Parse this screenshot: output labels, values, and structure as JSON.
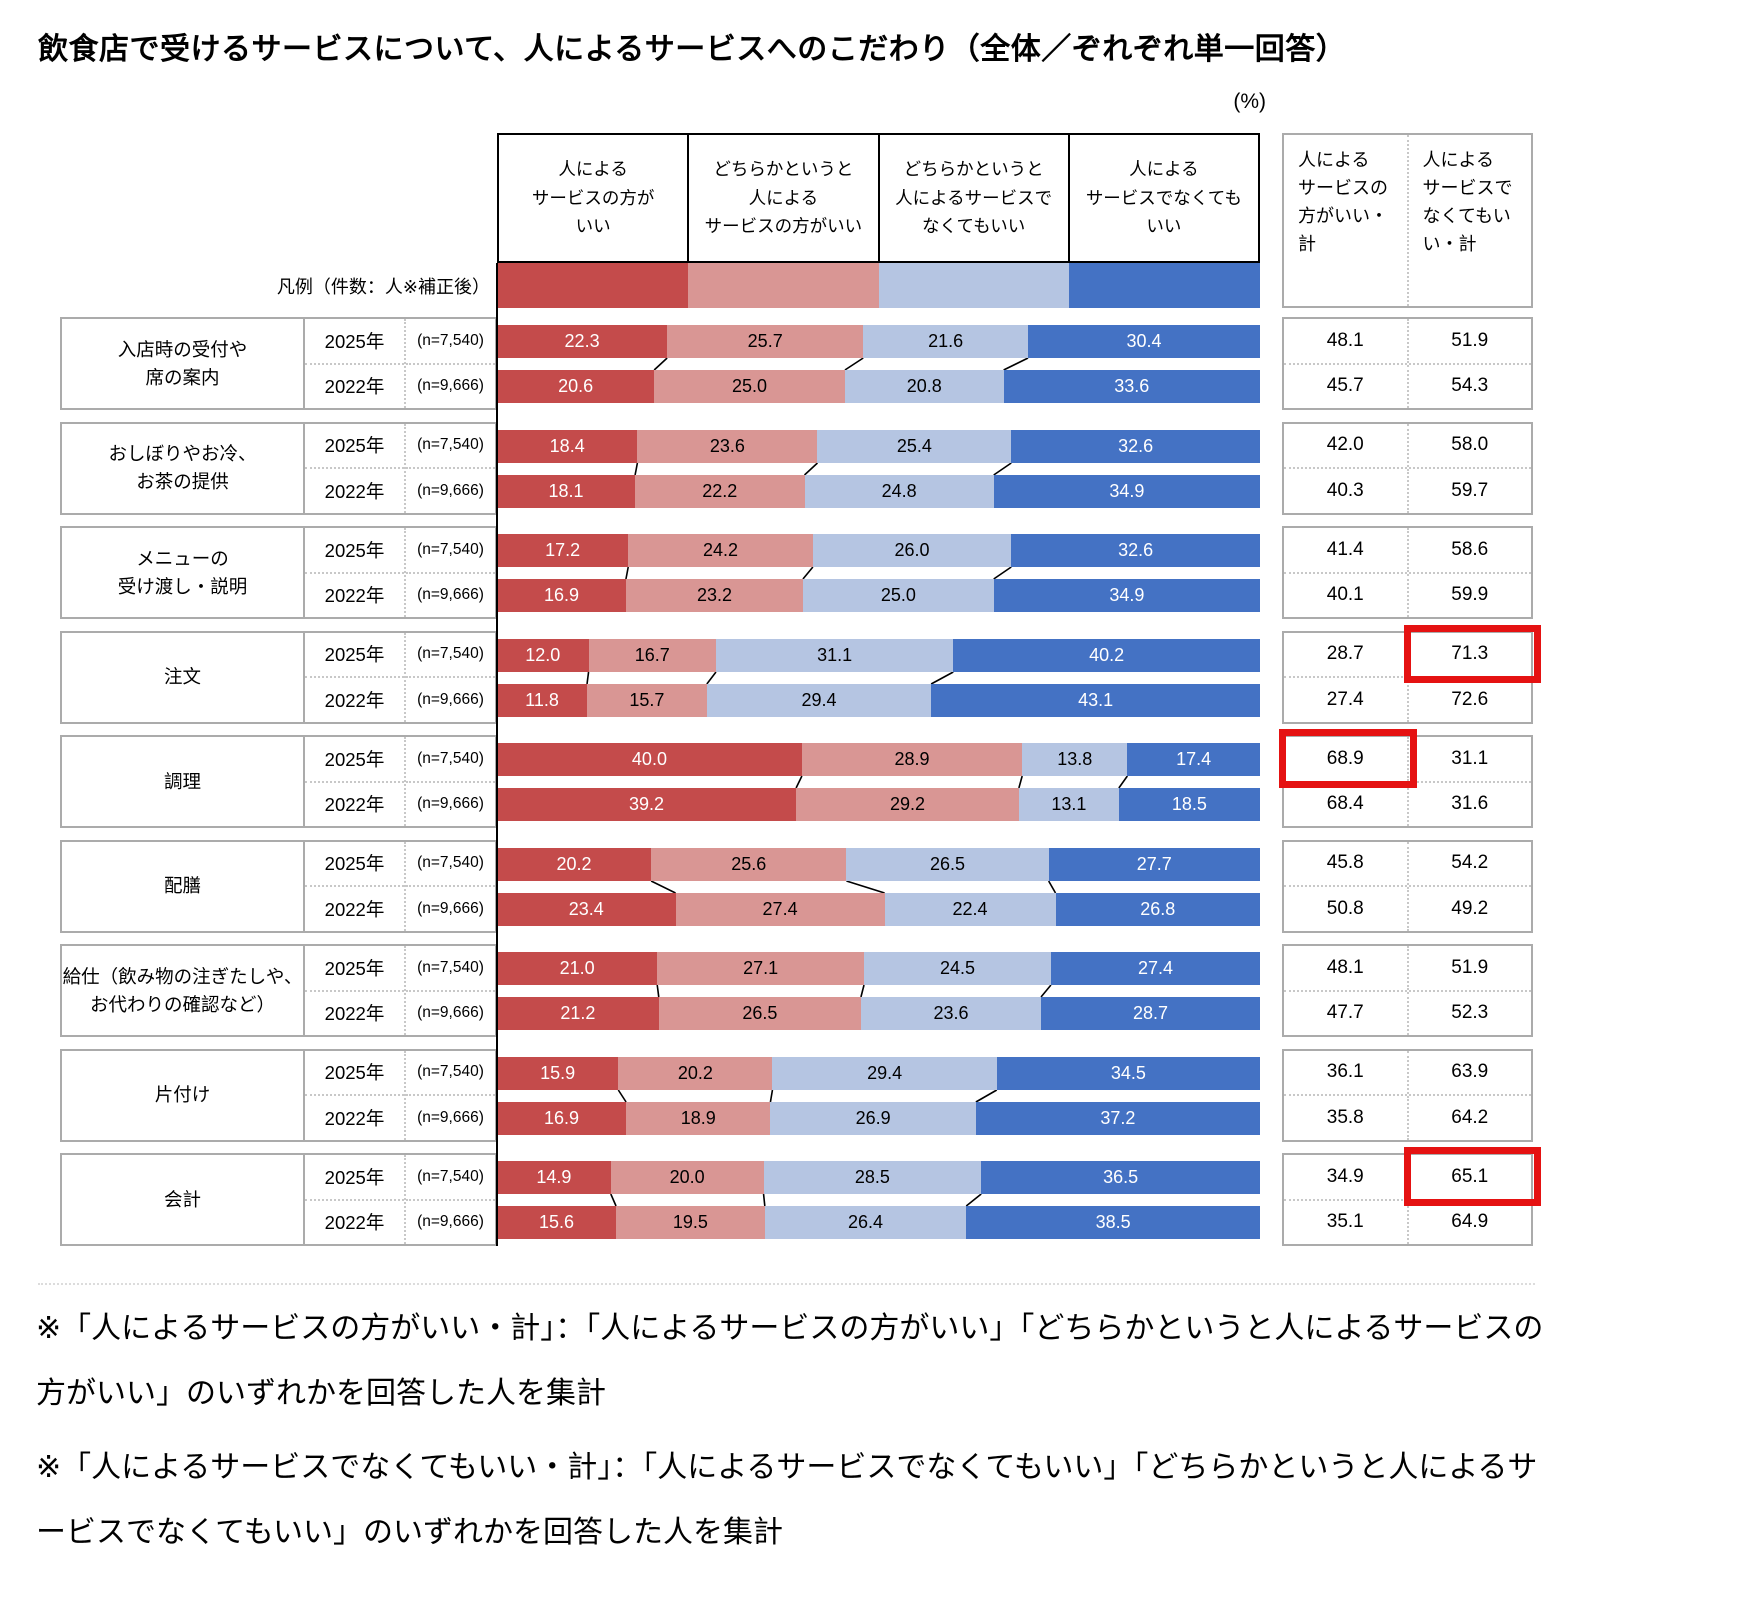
{
  "title": "飲食店で受けるサービスについて、人によるサービスへのこだわり（全体／ぞれぞれ単一回答）",
  "percent_label": "(%)",
  "legend_label": "凡例（件数：人※補正後）",
  "colors": {
    "segments": [
      "#C44B4B",
      "#D99694",
      "#B5C5E2",
      "#4472C4"
    ],
    "segment_text": [
      "#ffffff",
      "#000000",
      "#000000",
      "#ffffff"
    ],
    "highlight": "#E51212",
    "border_gray": "#ABABAB",
    "axis_black": "#000000"
  },
  "header": {
    "col1": "人による\nサービスの方が\nいい",
    "col2": "どちらかというと\n人による\nサービスの方がいい",
    "col3": "どちらかというと\n人によるサービスで\nなくてもいい",
    "col4": "人による\nサービスでなくても\nいい"
  },
  "summary_header": {
    "col1": "人による\nサービスの\n方がいい・\n計",
    "col2": "人による\nサービスで\nなくてもい\nい・計"
  },
  "chart_data": {
    "type": "bar",
    "stacked": true,
    "orientation": "horizontal",
    "unit": "%",
    "xlim": [
      0,
      100
    ],
    "series_labels": [
      "人によるサービスの方がいい",
      "どちらかというと人によるサービスの方がいい",
      "どちらかというと人によるサービスでなくてもいい",
      "人によるサービスでなくてもいい"
    ],
    "summary_headers": [
      "人によるサービスの方がいい・計",
      "人によるサービスでなくてもいい・計"
    ],
    "year_rows": [
      "2025年",
      "2022年"
    ],
    "sample_sizes": [
      "(n=7,540)",
      "(n=9,666)"
    ],
    "categories": [
      {
        "label": "入店時の受付や席の案内",
        "label_display": "入店時の受付や\n席の案内",
        "rows": [
          {
            "year": "2025年",
            "n": "(n=7,540)",
            "values": [
              22.3,
              25.7,
              21.6,
              30.4
            ],
            "sums": [
              48.1,
              51.9
            ],
            "hl": -1
          },
          {
            "year": "2022年",
            "n": "(n=9,666)",
            "values": [
              20.6,
              25.0,
              20.8,
              33.6
            ],
            "sums": [
              45.7,
              54.3
            ],
            "hl": -1
          }
        ]
      },
      {
        "label": "おしぼりやお冷、お茶の提供",
        "label_display": "おしぼりやお冷、\nお茶の提供",
        "rows": [
          {
            "year": "2025年",
            "n": "(n=7,540)",
            "values": [
              18.4,
              23.6,
              25.4,
              32.6
            ],
            "sums": [
              42.0,
              58.0
            ],
            "hl": -1
          },
          {
            "year": "2022年",
            "n": "(n=9,666)",
            "values": [
              18.1,
              22.2,
              24.8,
              34.9
            ],
            "sums": [
              40.3,
              59.7
            ],
            "hl": -1
          }
        ]
      },
      {
        "label": "メニューの受け渡し・説明",
        "label_display": "メニューの\n受け渡し・説明",
        "rows": [
          {
            "year": "2025年",
            "n": "(n=7,540)",
            "values": [
              17.2,
              24.2,
              26.0,
              32.6
            ],
            "sums": [
              41.4,
              58.6
            ],
            "hl": -1
          },
          {
            "year": "2022年",
            "n": "(n=9,666)",
            "values": [
              16.9,
              23.2,
              25.0,
              34.9
            ],
            "sums": [
              40.1,
              59.9
            ],
            "hl": -1
          }
        ]
      },
      {
        "label": "注文",
        "label_display": "注文",
        "rows": [
          {
            "year": "2025年",
            "n": "(n=7,540)",
            "values": [
              12.0,
              16.7,
              31.1,
              40.2
            ],
            "sums": [
              28.7,
              71.3
            ],
            "hl": 1
          },
          {
            "year": "2022年",
            "n": "(n=9,666)",
            "values": [
              11.8,
              15.7,
              29.4,
              43.1
            ],
            "sums": [
              27.4,
              72.6
            ],
            "hl": -1
          }
        ]
      },
      {
        "label": "調理",
        "label_display": "調理",
        "rows": [
          {
            "year": "2025年",
            "n": "(n=7,540)",
            "values": [
              40.0,
              28.9,
              13.8,
              17.4
            ],
            "sums": [
              68.9,
              31.1
            ],
            "hl": 0
          },
          {
            "year": "2022年",
            "n": "(n=9,666)",
            "values": [
              39.2,
              29.2,
              13.1,
              18.5
            ],
            "sums": [
              68.4,
              31.6
            ],
            "hl": -1
          }
        ]
      },
      {
        "label": "配膳",
        "label_display": "配膳",
        "rows": [
          {
            "year": "2025年",
            "n": "(n=7,540)",
            "values": [
              20.2,
              25.6,
              26.5,
              27.7
            ],
            "sums": [
              45.8,
              54.2
            ],
            "hl": -1
          },
          {
            "year": "2022年",
            "n": "(n=9,666)",
            "values": [
              23.4,
              27.4,
              22.4,
              26.8
            ],
            "sums": [
              50.8,
              49.2
            ],
            "hl": -1
          }
        ]
      },
      {
        "label": "給仕（飲み物の注ぎたしや、お代わりの確認など）",
        "label_display": "給仕（飲み物の注ぎたしや、\nお代わりの確認など）",
        "rows": [
          {
            "year": "2025年",
            "n": "(n=7,540)",
            "values": [
              21.0,
              27.1,
              24.5,
              27.4
            ],
            "sums": [
              48.1,
              51.9
            ],
            "hl": -1
          },
          {
            "year": "2022年",
            "n": "(n=9,666)",
            "values": [
              21.2,
              26.5,
              23.6,
              28.7
            ],
            "sums": [
              47.7,
              52.3
            ],
            "hl": -1
          }
        ]
      },
      {
        "label": "片付け",
        "label_display": "片付け",
        "rows": [
          {
            "year": "2025年",
            "n": "(n=7,540)",
            "values": [
              15.9,
              20.2,
              29.4,
              34.5
            ],
            "sums": [
              36.1,
              63.9
            ],
            "hl": -1
          },
          {
            "year": "2022年",
            "n": "(n=9,666)",
            "values": [
              16.9,
              18.9,
              26.9,
              37.2
            ],
            "sums": [
              35.8,
              64.2
            ],
            "hl": -1
          }
        ]
      },
      {
        "label": "会計",
        "label_display": "会計",
        "rows": [
          {
            "year": "2025年",
            "n": "(n=7,540)",
            "values": [
              14.9,
              20.0,
              28.5,
              36.5
            ],
            "sums": [
              34.9,
              65.1
            ],
            "hl": 1
          },
          {
            "year": "2022年",
            "n": "(n=9,666)",
            "values": [
              15.6,
              19.5,
              26.4,
              38.5
            ],
            "sums": [
              35.1,
              64.9
            ],
            "hl": -1
          }
        ]
      }
    ]
  },
  "footnotes": [
    "※「人によるサービスの方がいい・計」：「人によるサービスの方がいい」「どちらかというと人によるサービスの方がいい」のいずれかを回答した人を集計",
    "※「人によるサービスでなくてもいい・計」：「人によるサービスでなくてもいい」「どちらかというと人によるサービスでなくてもいい」のいずれかを回答した人を集計"
  ]
}
